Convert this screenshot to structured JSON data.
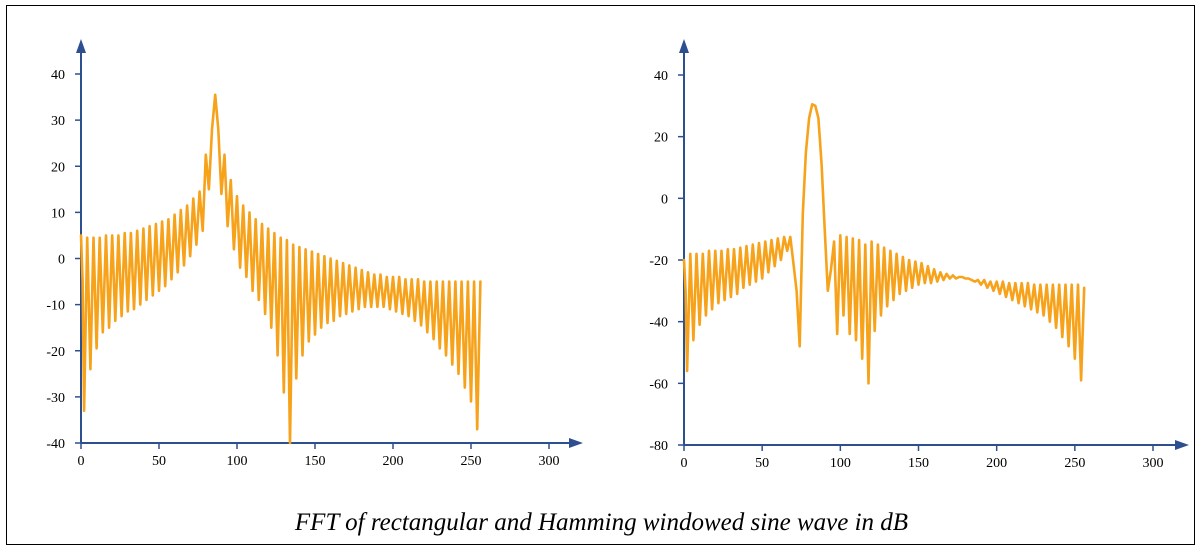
{
  "caption": "FFT of rectangular and Hamming windowed sine wave in dB",
  "chart_data": [
    {
      "type": "line",
      "title": "",
      "xlabel": "",
      "ylabel": "",
      "xlim": [
        0,
        300
      ],
      "ylim": [
        -40,
        40
      ],
      "xticks": [
        0,
        50,
        100,
        150,
        200,
        250,
        300
      ],
      "yticks": [
        -40,
        -30,
        -20,
        -10,
        0,
        10,
        20,
        30,
        40
      ],
      "line_color": "#f7a21b",
      "axis_color": "#2e4f8f",
      "series": [
        {
          "x": [
            0,
            1,
            2,
            4,
            6,
            8,
            10,
            12,
            14,
            16,
            18,
            20,
            22,
            24,
            26,
            28,
            30,
            32,
            34,
            36,
            38,
            40,
            42,
            44,
            46,
            48,
            50,
            52,
            54,
            56,
            58,
            60,
            62,
            64,
            66,
            68,
            70,
            72,
            74,
            76,
            78,
            80,
            82,
            84,
            86,
            88,
            90,
            92,
            94,
            96,
            98,
            100,
            102,
            104,
            106,
            108,
            110,
            112,
            114,
            116,
            118,
            120,
            122,
            124,
            126,
            128,
            130,
            132,
            134,
            136,
            138,
            140,
            142,
            144,
            146,
            148,
            150,
            152,
            154,
            156,
            158,
            160,
            162,
            164,
            166,
            168,
            170,
            172,
            174,
            176,
            178,
            180,
            182,
            184,
            186,
            188,
            190,
            192,
            194,
            196,
            198,
            200,
            202,
            204,
            206,
            208,
            210,
            212,
            214,
            216,
            218,
            220,
            222,
            224,
            226,
            228,
            230,
            232,
            234,
            236,
            238,
            240,
            242,
            244,
            246,
            248,
            250,
            252,
            254,
            256
          ],
          "values": [
            5,
            -5,
            -33,
            4.5,
            -24,
            4.5,
            -19.5,
            4.5,
            -16,
            5,
            -15,
            5,
            -13.5,
            5,
            -12.5,
            5.5,
            -11.5,
            5.5,
            -11,
            6,
            -10,
            6.5,
            -9,
            7,
            -8,
            7.5,
            -7,
            8,
            -6,
            8.5,
            -4.5,
            9.5,
            -3,
            10.5,
            -1.5,
            11.5,
            0.5,
            13,
            3,
            14.5,
            6,
            22.5,
            15,
            28,
            35.5,
            28,
            14,
            22.5,
            7,
            17,
            2,
            13.5,
            -2,
            11.5,
            -4,
            10,
            -7,
            8.5,
            -9,
            7.5,
            -12,
            6.5,
            -15,
            5.5,
            -21,
            4.5,
            -29,
            4,
            -40,
            3,
            -26,
            2.5,
            -21,
            2,
            -18,
            1.5,
            -16.5,
            1,
            -15,
            0.5,
            -14,
            0,
            -13.5,
            -0.5,
            -12.5,
            -1,
            -12,
            -1.5,
            -11.5,
            -2,
            -11,
            -2.5,
            -10.5,
            -3,
            -10.5,
            -3.5,
            -10.5,
            -3.5,
            -10.5,
            -4,
            -11,
            -4,
            -11.5,
            -4,
            -12,
            -4.5,
            -12.5,
            -4.5,
            -13.5,
            -4.5,
            -14.5,
            -5,
            -16,
            -5,
            -17.5,
            -5,
            -19.5,
            -5,
            -21,
            -5,
            -23,
            -5,
            -25,
            -5,
            -28,
            -5,
            -31,
            -5,
            -37,
            -5
          ]
        }
      ]
    },
    {
      "type": "line",
      "title": "",
      "xlabel": "",
      "ylabel": "",
      "xlim": [
        0,
        300
      ],
      "ylim": [
        -80,
        40
      ],
      "xticks": [
        0,
        50,
        100,
        150,
        200,
        250,
        300
      ],
      "yticks": [
        -80,
        -60,
        -40,
        -20,
        0,
        20,
        40
      ],
      "line_color": "#f7a21b",
      "axis_color": "#2e4f8f",
      "series": [
        {
          "x": [
            0,
            1,
            2,
            4,
            6,
            8,
            10,
            12,
            14,
            16,
            18,
            20,
            22,
            24,
            26,
            28,
            30,
            32,
            34,
            36,
            38,
            40,
            42,
            44,
            46,
            48,
            50,
            52,
            54,
            56,
            58,
            60,
            62,
            64,
            66,
            68,
            70,
            72,
            74,
            76,
            78,
            80,
            82,
            84,
            86,
            88,
            90,
            92,
            94,
            96,
            98,
            100,
            102,
            104,
            106,
            108,
            110,
            112,
            114,
            116,
            118,
            120,
            122,
            124,
            126,
            128,
            130,
            132,
            134,
            136,
            138,
            140,
            142,
            144,
            146,
            148,
            150,
            152,
            154,
            156,
            158,
            160,
            162,
            164,
            166,
            168,
            170,
            172,
            174,
            176,
            178,
            180,
            182,
            184,
            186,
            188,
            190,
            192,
            194,
            196,
            198,
            200,
            202,
            204,
            206,
            208,
            210,
            212,
            214,
            216,
            218,
            220,
            222,
            224,
            226,
            228,
            230,
            232,
            234,
            236,
            238,
            240,
            242,
            244,
            246,
            248,
            250,
            252,
            254,
            256
          ],
          "values": [
            -20,
            -30,
            -56,
            -18,
            -46,
            -18,
            -41,
            -18,
            -38,
            -17,
            -36,
            -17,
            -34,
            -17,
            -33,
            -16.5,
            -32,
            -16.5,
            -31,
            -16,
            -29,
            -15.5,
            -28,
            -15,
            -27,
            -14.5,
            -26,
            -14,
            -24,
            -13.5,
            -22,
            -13,
            -20,
            -12.5,
            -17,
            -12.5,
            -21,
            -30,
            -48,
            -5,
            15,
            26,
            30.5,
            30,
            26,
            11,
            -10,
            -30,
            -23,
            -14,
            -44,
            -12,
            -38,
            -12.5,
            -44,
            -13,
            -46,
            -13.5,
            -52,
            -15,
            -60,
            -14,
            -43,
            -15,
            -38,
            -16,
            -35,
            -17,
            -33,
            -18,
            -31,
            -19,
            -30,
            -20,
            -29,
            -20.5,
            -28,
            -21,
            -27.5,
            -22,
            -27.5,
            -23,
            -27,
            -24,
            -26.5,
            -24.5,
            -26,
            -25,
            -26,
            -25.5,
            -25.5,
            -26,
            -26,
            -26.5,
            -27,
            -26.5,
            -28,
            -26.5,
            -29,
            -27,
            -30,
            -27,
            -31,
            -27,
            -32,
            -27.5,
            -33,
            -27.5,
            -34,
            -27.5,
            -35,
            -27.5,
            -36,
            -28,
            -37,
            -28,
            -38,
            -28,
            -40,
            -28,
            -42,
            -28,
            -45,
            -28,
            -48,
            -28,
            -52,
            -28,
            -59,
            -29
          ]
        }
      ]
    }
  ]
}
